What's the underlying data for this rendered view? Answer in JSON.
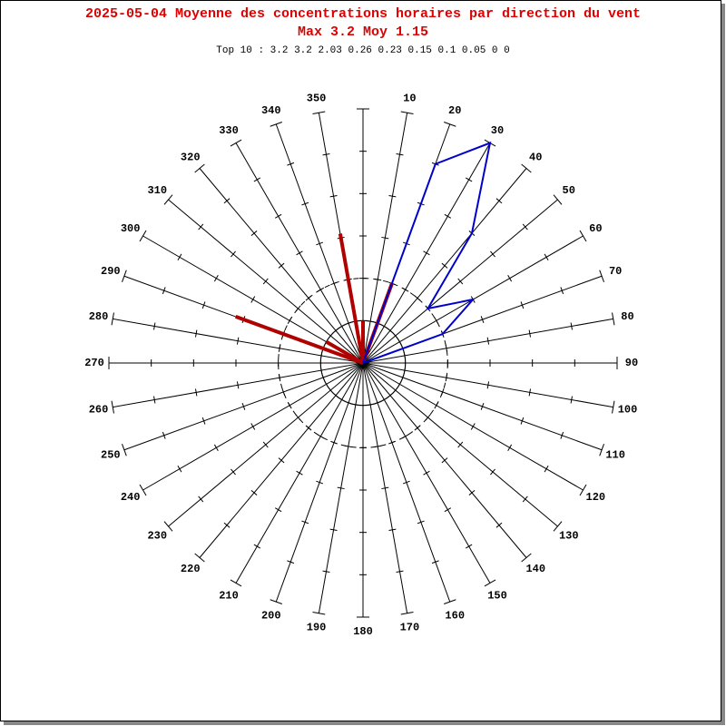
{
  "chart_data": {
    "type": "polar",
    "title": "2025-05-04 Moyenne des concentrations horaires par direction du vent",
    "subtitle": "Max 3.2 Moy 1.15",
    "annotation": "Top 10 : 3.2 3.2 2.03 0.26 0.23 0.15 0.1 0.05 0 0",
    "rlim": [
      0,
      6
    ],
    "rticks": [
      1,
      2,
      3,
      4,
      5,
      6
    ],
    "rings": [
      1,
      2
    ],
    "thetaticks_unlabeled": [
      0
    ],
    "thetaticks": [
      10,
      20,
      30,
      40,
      50,
      60,
      70,
      80,
      90,
      100,
      110,
      120,
      130,
      140,
      150,
      160,
      170,
      180,
      190,
      200,
      210,
      220,
      230,
      240,
      250,
      260,
      270,
      280,
      290,
      300,
      310,
      320,
      330,
      340,
      350
    ],
    "series": [
      {
        "type": "bar",
        "color": "#b00000",
        "theta": [
          350,
          290,
          20,
          0,
          300
        ],
        "values": [
          3.1,
          3.2,
          2.0,
          1.0,
          1.0
        ]
      },
      {
        "type": "line",
        "color": "#0000cc",
        "theta": [
          10,
          20,
          30,
          40,
          50,
          60,
          70,
          80
        ],
        "values": [
          0,
          5,
          6,
          4,
          2,
          3,
          2,
          0
        ]
      }
    ]
  }
}
